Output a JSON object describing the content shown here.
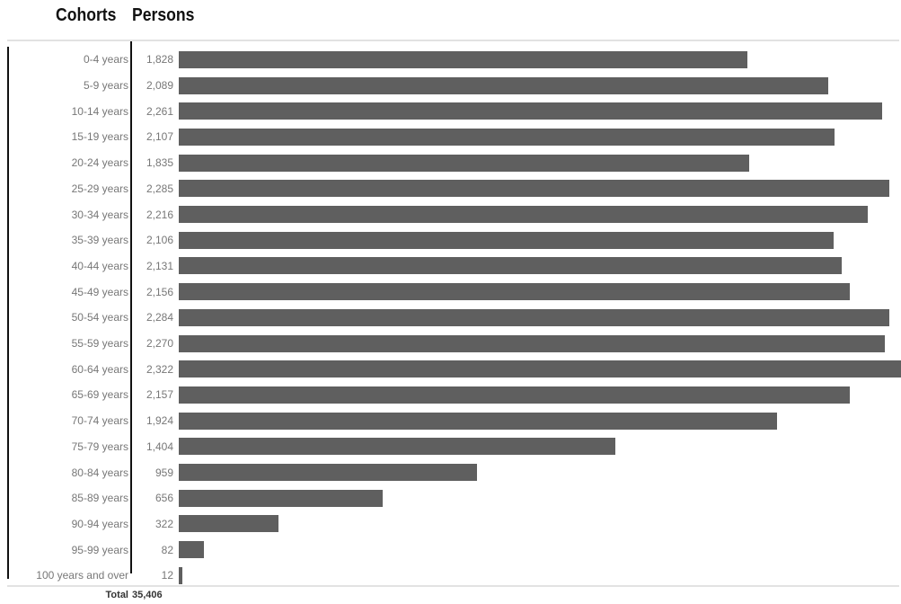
{
  "headers": {
    "cohorts": "Cohorts",
    "persons": "Persons"
  },
  "chart_data": {
    "type": "bar",
    "orientation": "horizontal",
    "categories": [
      "0-4 years",
      "5-9 years",
      "10-14 years",
      "15-19 years",
      "20-24 years",
      "25-29 years",
      "30-34 years",
      "35-39 years",
      "40-44 years",
      "45-49 years",
      "50-54 years",
      "55-59 years",
      "60-64 years",
      "65-69 years",
      "70-74 years",
      "75-79 years",
      "80-84 years",
      "85-89 years",
      "90-94 years",
      "95-99 years",
      "100 years and over"
    ],
    "values": [
      1828,
      2089,
      2261,
      2107,
      1835,
      2285,
      2216,
      2106,
      2131,
      2156,
      2284,
      2270,
      2322,
      2157,
      1924,
      1404,
      959,
      656,
      322,
      82,
      12
    ],
    "value_labels": [
      "1,828",
      "2,089",
      "2,261",
      "2,107",
      "1,835",
      "2,285",
      "2,216",
      "2,106",
      "2,131",
      "2,156",
      "2,284",
      "2,270",
      "2,322",
      "2,157",
      "1,924",
      "1,404",
      "959",
      "656",
      "322",
      "82",
      "12"
    ],
    "xlim": [
      0,
      2322
    ],
    "bar_color": "#5f5f5f"
  },
  "total": {
    "label": "Total",
    "value": "35,406"
  }
}
